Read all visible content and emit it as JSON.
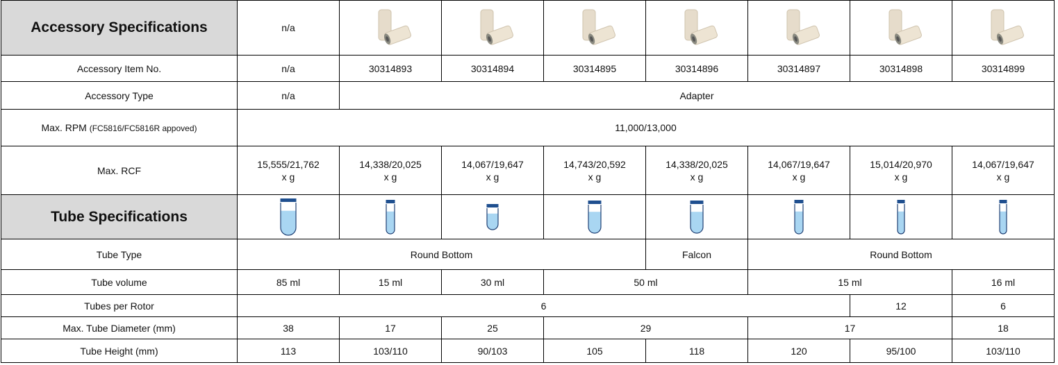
{
  "table": {
    "rows": [
      [
        "Accessory Specifications",
        "n/a"
      ],
      [
        "Accessory Item No.",
        "n/a",
        "30314893",
        "30314894",
        "30314895",
        "30314896",
        "30314897",
        "30314898",
        "30314899"
      ],
      [
        "Accessory Type",
        "n/a",
        "Adapter"
      ],
      [
        "Max. RPM",
        "(FC5816/FC5816R appoved)",
        "11,000/13,000"
      ],
      [
        "Max. RCF",
        "15,555/21,762\nx g",
        "14,338/20,025\nx g",
        "14,067/19,647\nx g",
        "14,743/20,592\nx g",
        "14,338/20,025\nx g",
        "14,067/19,647\nx g",
        "15,014/20,970\nx g",
        "14,067/19,647\nx g"
      ],
      [
        "Tube Specifications"
      ],
      [
        "Tube Type",
        "Round Bottom",
        "Falcon",
        "Round Bottom"
      ],
      [
        "Tube volume",
        "85 ml",
        "15 ml",
        "30 ml",
        "50 ml",
        "15 ml",
        "16 ml"
      ],
      [
        "Tubes per Rotor",
        "6",
        "12",
        "6"
      ],
      [
        "Max. Tube Diameter (mm)",
        "38",
        "17",
        "25",
        "29",
        "17",
        "18"
      ],
      [
        "Tube Height (mm)",
        "113",
        "103/110",
        "90/103",
        "105",
        "118",
        "120",
        "95/100",
        "103/110"
      ]
    ]
  }
}
